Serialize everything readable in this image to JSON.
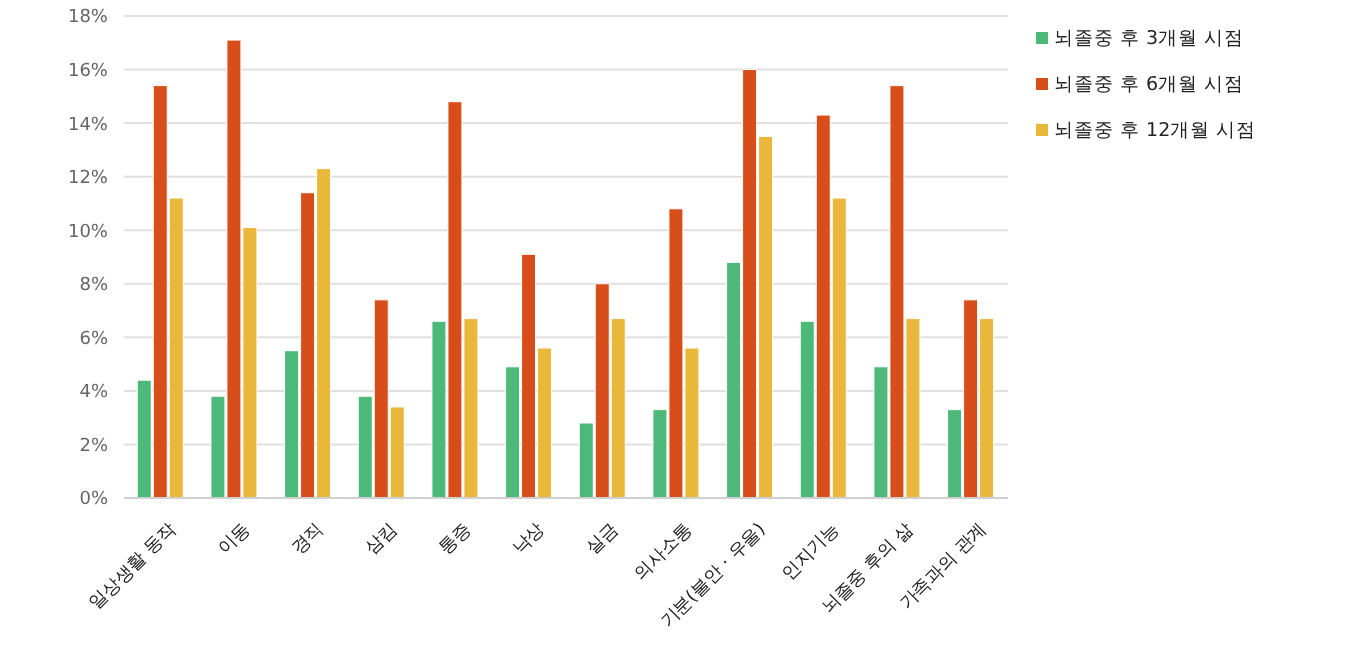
{
  "chart_data": {
    "type": "bar",
    "categories": [
      "일상생활 동작",
      "이동",
      "경직",
      "삼킴",
      "통증",
      "낙상",
      "실금",
      "의사소통",
      "기분(불안 · 우울)",
      "인지기능",
      "뇌졸중 후의 삶",
      "가족과의 관계"
    ],
    "series": [
      {
        "name": "뇌졸중 후 3개월 시점",
        "color": "#4cb97b",
        "values": [
          4.4,
          3.8,
          5.5,
          3.8,
          6.6,
          4.9,
          2.8,
          3.3,
          8.8,
          6.6,
          4.9,
          3.3
        ]
      },
      {
        "name": "뇌졸중 후 6개월 시점",
        "color": "#d84e1a",
        "values": [
          15.4,
          17.1,
          11.4,
          7.4,
          14.8,
          9.1,
          8.0,
          10.8,
          16.0,
          14.3,
          15.4,
          7.4
        ]
      },
      {
        "name": "뇌졸중 후 12개월 시점",
        "color": "#e9b73a",
        "values": [
          11.2,
          10.1,
          12.3,
          3.4,
          6.7,
          5.6,
          6.7,
          5.6,
          13.5,
          11.2,
          6.7,
          6.7
        ]
      }
    ],
    "ylim": [
      0,
      18
    ],
    "yticks": [
      {
        "value": 0,
        "label": "0%"
      },
      {
        "value": 2,
        "label": "2%"
      },
      {
        "value": 4,
        "label": "4%"
      },
      {
        "value": 6,
        "label": "6%"
      },
      {
        "value": 8,
        "label": "8%"
      },
      {
        "value": 10,
        "label": "10%"
      },
      {
        "value": 12,
        "label": "12%"
      },
      {
        "value": 14,
        "label": "14%"
      },
      {
        "value": 16,
        "label": "16%"
      },
      {
        "value": 18,
        "label": "18%"
      }
    ],
    "grid": "y",
    "legend": "top right"
  }
}
